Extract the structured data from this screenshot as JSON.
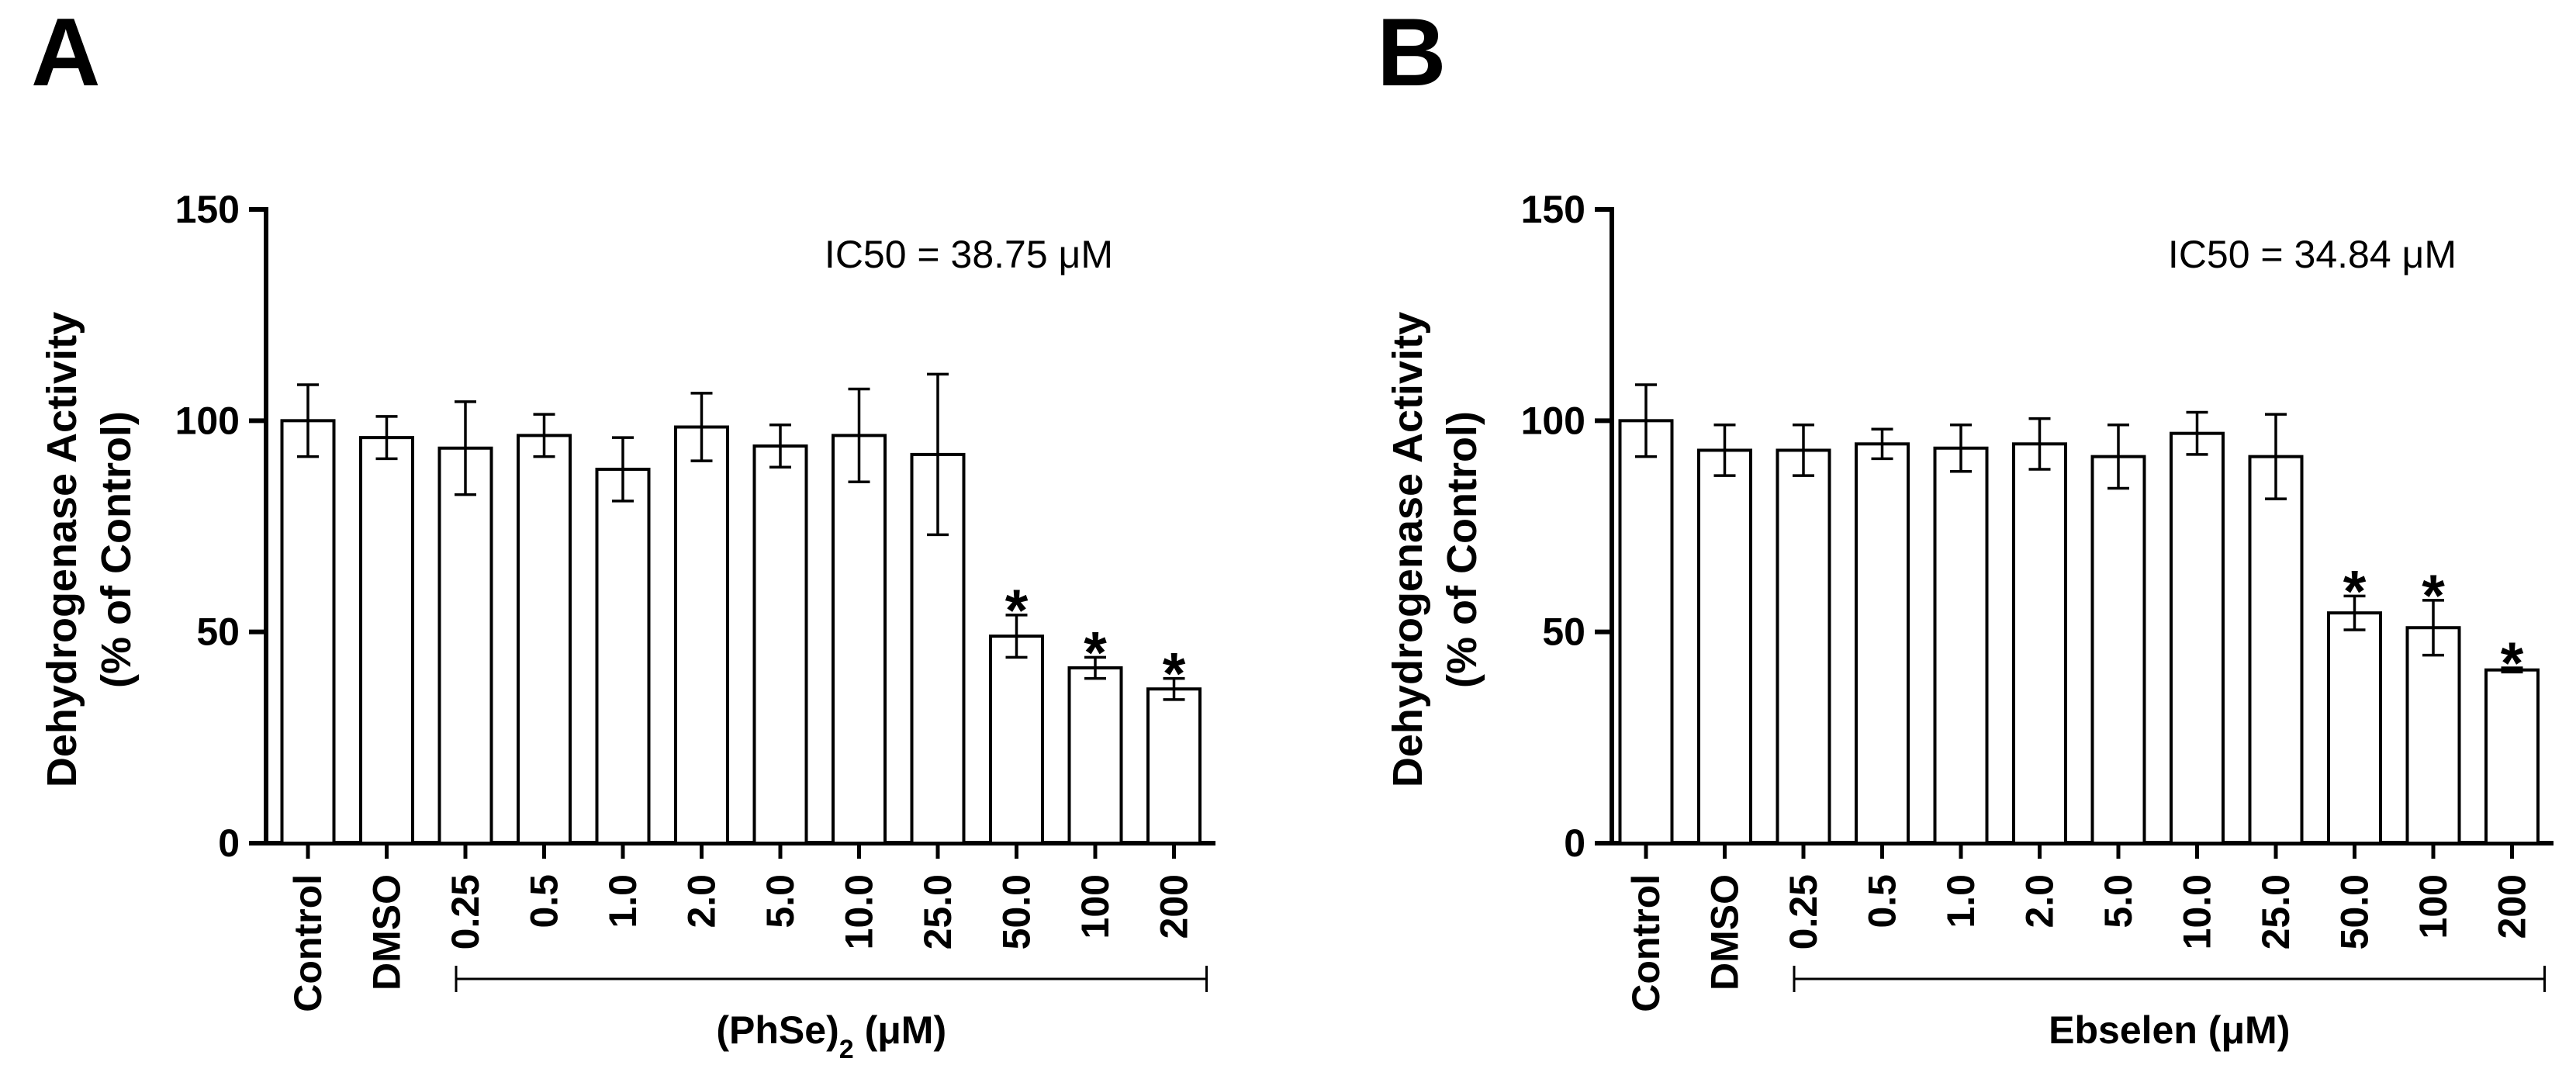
{
  "chart_data": [
    {
      "type": "bar",
      "panel": "A",
      "ylabel_line1": "Dehydrogenase Activity",
      "ylabel_line2": "(% of Control)",
      "xlabel": "(PhSe)",
      "xlabel_sub": "2",
      "xlabel_unit": "(μM)",
      "annotation": "IC50 = 38.75 μM",
      "ylim": [
        0,
        150
      ],
      "yticks": [
        "0",
        "50",
        "100",
        "150"
      ],
      "categories": [
        "Control",
        "DMSO",
        "0.25",
        "0.5",
        "1.0",
        "2.0",
        "5.0",
        "10.0",
        "25.0",
        "50.0",
        "100",
        "200"
      ],
      "values": [
        100,
        96,
        93.5,
        96.5,
        88.5,
        98.5,
        94,
        96.5,
        92,
        49,
        41.5,
        36.5
      ],
      "errors": [
        8.5,
        5,
        11,
        5,
        7.5,
        8,
        5,
        11,
        19,
        5,
        2.5,
        2.5
      ],
      "significant": [
        "",
        "",
        "",
        "",
        "",
        "",
        "",
        "",
        "",
        "*",
        "*",
        "*"
      ],
      "bracket_from": 2,
      "bracket_to": 11
    },
    {
      "type": "bar",
      "panel": "B",
      "ylabel_line1": "Dehydrogenase Activity",
      "ylabel_line2": "(% of Control)",
      "xlabel": "Ebselen",
      "xlabel_sub": "",
      "xlabel_unit": "(μM)",
      "annotation": "IC50 = 34.84 μM",
      "ylim": [
        0,
        150
      ],
      "yticks": [
        "0",
        "50",
        "100",
        "150"
      ],
      "categories": [
        "Control",
        "DMSO",
        "0.25",
        "0.5",
        "1.0",
        "2.0",
        "5.0",
        "10.0",
        "25.0",
        "50.0",
        "100",
        "200"
      ],
      "values": [
        100,
        93,
        93,
        94.5,
        93.5,
        94.5,
        91.5,
        97,
        91.5,
        54.5,
        51,
        41
      ],
      "errors": [
        8.5,
        6,
        6,
        3.5,
        5.5,
        6,
        7.5,
        5,
        10,
        4,
        6.5,
        0.5
      ],
      "significant": [
        "",
        "",
        "",
        "",
        "",
        "",
        "",
        "",
        "",
        "*",
        "*",
        "*"
      ],
      "bracket_from": 2,
      "bracket_to": 11
    }
  ]
}
